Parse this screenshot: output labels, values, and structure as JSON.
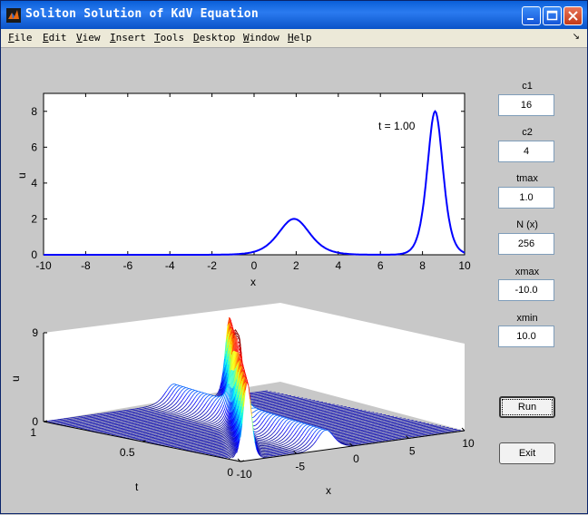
{
  "window": {
    "title": "Soliton Solution of KdV Equation"
  },
  "menu": [
    "File",
    "Edit",
    "View",
    "Insert",
    "Tools",
    "Desktop",
    "Window",
    "Help"
  ],
  "controls": {
    "c1": {
      "label": "c1",
      "value": "16"
    },
    "c2": {
      "label": "c2",
      "value": "4"
    },
    "tmax": {
      "label": "tmax",
      "value": "1.0"
    },
    "N": {
      "label": "N (x)",
      "value": "256"
    },
    "xmax": {
      "label": "xmax",
      "value": "-10.0"
    },
    "xmin": {
      "label": "xmin",
      "value": "10.0"
    },
    "run_label": "Run",
    "exit_label": "Exit"
  },
  "chart_data": [
    {
      "type": "line",
      "annotation": "t = 1.00",
      "xlabel": "x",
      "ylabel": "u",
      "xlim": [
        -10,
        10
      ],
      "ylim": [
        0,
        9
      ],
      "xticks": [
        "-10",
        "-8",
        "-6",
        "-4",
        "-2",
        "0",
        "2",
        "4",
        "6",
        "8",
        "10"
      ],
      "yticks": [
        "0",
        "2",
        "4",
        "6",
        "8"
      ],
      "series": [
        {
          "color": "#0000ff",
          "solitons": [
            {
              "amplitude": 2.0,
              "center": 1.9
            },
            {
              "amplitude": 8.0,
              "center": 8.6
            }
          ]
        }
      ]
    },
    {
      "type": "waterfall",
      "xlabel": "x",
      "ylabel": "t",
      "zlabel": "u",
      "xlim": [
        -10,
        10
      ],
      "ylim": [
        0,
        1
      ],
      "zlim": [
        0,
        9
      ],
      "xticks": [
        "-10",
        "-5",
        "0",
        "5",
        "10"
      ],
      "yticks": [
        "0",
        "0.5",
        "1"
      ],
      "zticks": [
        "0",
        "9"
      ],
      "colormap": "jet"
    }
  ]
}
